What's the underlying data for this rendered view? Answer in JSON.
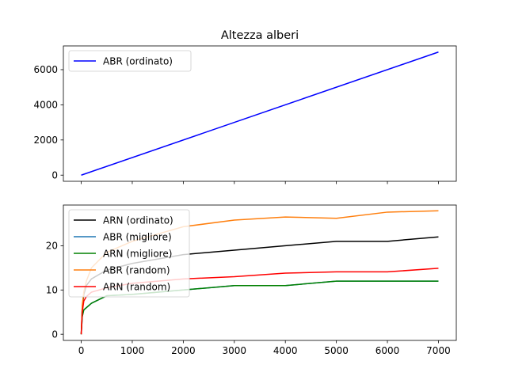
{
  "chart_data": [
    {
      "type": "line",
      "title": "Altezza alberi",
      "xlabel": "",
      "ylabel": "",
      "xlim": [
        -350,
        7350
      ],
      "ylim": [
        -350,
        7350
      ],
      "x_ticks": [
        0,
        1000,
        2000,
        3000,
        4000,
        5000,
        6000,
        7000
      ],
      "x_ticklabels_visible": false,
      "y_ticks": [
        0,
        2000,
        4000,
        6000
      ],
      "y_ticklabels": [
        "0",
        "2000",
        "4000",
        "6000"
      ],
      "grid": false,
      "legend_position": "upper-left",
      "series": [
        {
          "name": "ABR (ordinato)",
          "color": "#0000ff",
          "x": [
            0,
            7000
          ],
          "y": [
            0,
            7000
          ]
        }
      ]
    },
    {
      "type": "line",
      "title": "",
      "xlabel": "",
      "ylabel": "",
      "xlim": [
        -350,
        7350
      ],
      "ylim": [
        -1.4,
        29.2
      ],
      "x_ticks": [
        0,
        1000,
        2000,
        3000,
        4000,
        5000,
        6000,
        7000
      ],
      "x_ticklabels": [
        "0",
        "1000",
        "2000",
        "3000",
        "4000",
        "5000",
        "6000",
        "7000"
      ],
      "x_ticklabels_visible": true,
      "y_ticks": [
        0,
        10,
        20
      ],
      "y_ticklabels": [
        "0",
        "10",
        "20"
      ],
      "grid": false,
      "legend_position": "upper-left",
      "series": [
        {
          "name": "ARN (ordinato)",
          "color": "#000000",
          "x": [
            0,
            20,
            50,
            100,
            200,
            500,
            1000,
            2000,
            3000,
            4000,
            5000,
            6000,
            7000
          ],
          "y": [
            0,
            6,
            9,
            11,
            12.5,
            14.5,
            16,
            18,
            19,
            20,
            21,
            21,
            22
          ]
        },
        {
          "name": "ABR (migliore)",
          "color": "#1f77b4",
          "x": [
            0,
            20,
            50,
            100,
            200,
            500,
            1000,
            2000,
            3000,
            4000,
            5000,
            6000,
            7000
          ],
          "y": [
            0,
            4,
            5.5,
            6,
            7,
            8.7,
            9,
            10,
            11,
            11,
            12,
            12,
            12
          ]
        },
        {
          "name": "ARN (migliore)",
          "color": "#008000",
          "x": [
            0,
            20,
            50,
            100,
            200,
            500,
            1000,
            2000,
            3000,
            4000,
            5000,
            6000,
            7000
          ],
          "y": [
            0,
            4,
            5.5,
            6,
            7,
            8.7,
            9,
            10,
            11,
            11,
            12,
            12,
            12
          ]
        },
        {
          "name": "ABR (random)",
          "color": "#ff7f0e",
          "x": [
            0,
            20,
            50,
            100,
            200,
            500,
            1000,
            2000,
            3000,
            4000,
            5000,
            6000,
            7000
          ],
          "y": [
            0,
            6.5,
            9.5,
            12,
            15,
            18.5,
            21,
            24.3,
            25.8,
            26.5,
            26.2,
            27.6,
            27.9
          ]
        },
        {
          "name": "ARN (random)",
          "color": "#ff0000",
          "x": [
            0,
            20,
            50,
            100,
            200,
            500,
            1000,
            2000,
            3000,
            4000,
            5000,
            6000,
            7000
          ],
          "y": [
            0,
            5,
            7.5,
            8.5,
            9.5,
            10.5,
            11.5,
            12.5,
            13,
            13.8,
            14.1,
            14.1,
            14.9
          ]
        }
      ]
    }
  ]
}
